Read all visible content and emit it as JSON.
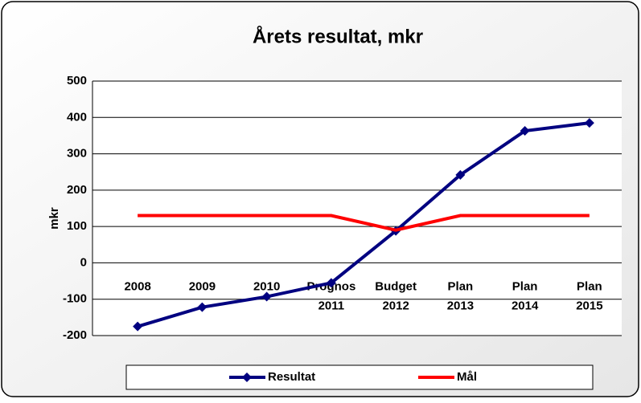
{
  "chart_data": {
    "type": "line",
    "title": "Årets resultat,  mkr",
    "y_label": "mkr",
    "categories": [
      "2008",
      "2009",
      "2010",
      "Prognos 2011",
      "Budget 2012",
      "Plan 2013",
      "Plan 2014",
      "Plan 2015"
    ],
    "series": [
      {
        "name": "Resultat",
        "color": "#000080",
        "marker": "diamond",
        "values": [
          -175,
          -122,
          -93,
          -55,
          88,
          242,
          363,
          385
        ]
      },
      {
        "name": "Mål",
        "color": "#ff0000",
        "values": [
          130,
          130,
          130,
          130,
          90,
          130,
          130,
          130
        ]
      }
    ],
    "ylim": [
      -200,
      500
    ],
    "yticks": [
      -200,
      -100,
      0,
      100,
      200,
      300,
      400,
      500
    ],
    "grid": true,
    "legend": "bottom"
  }
}
